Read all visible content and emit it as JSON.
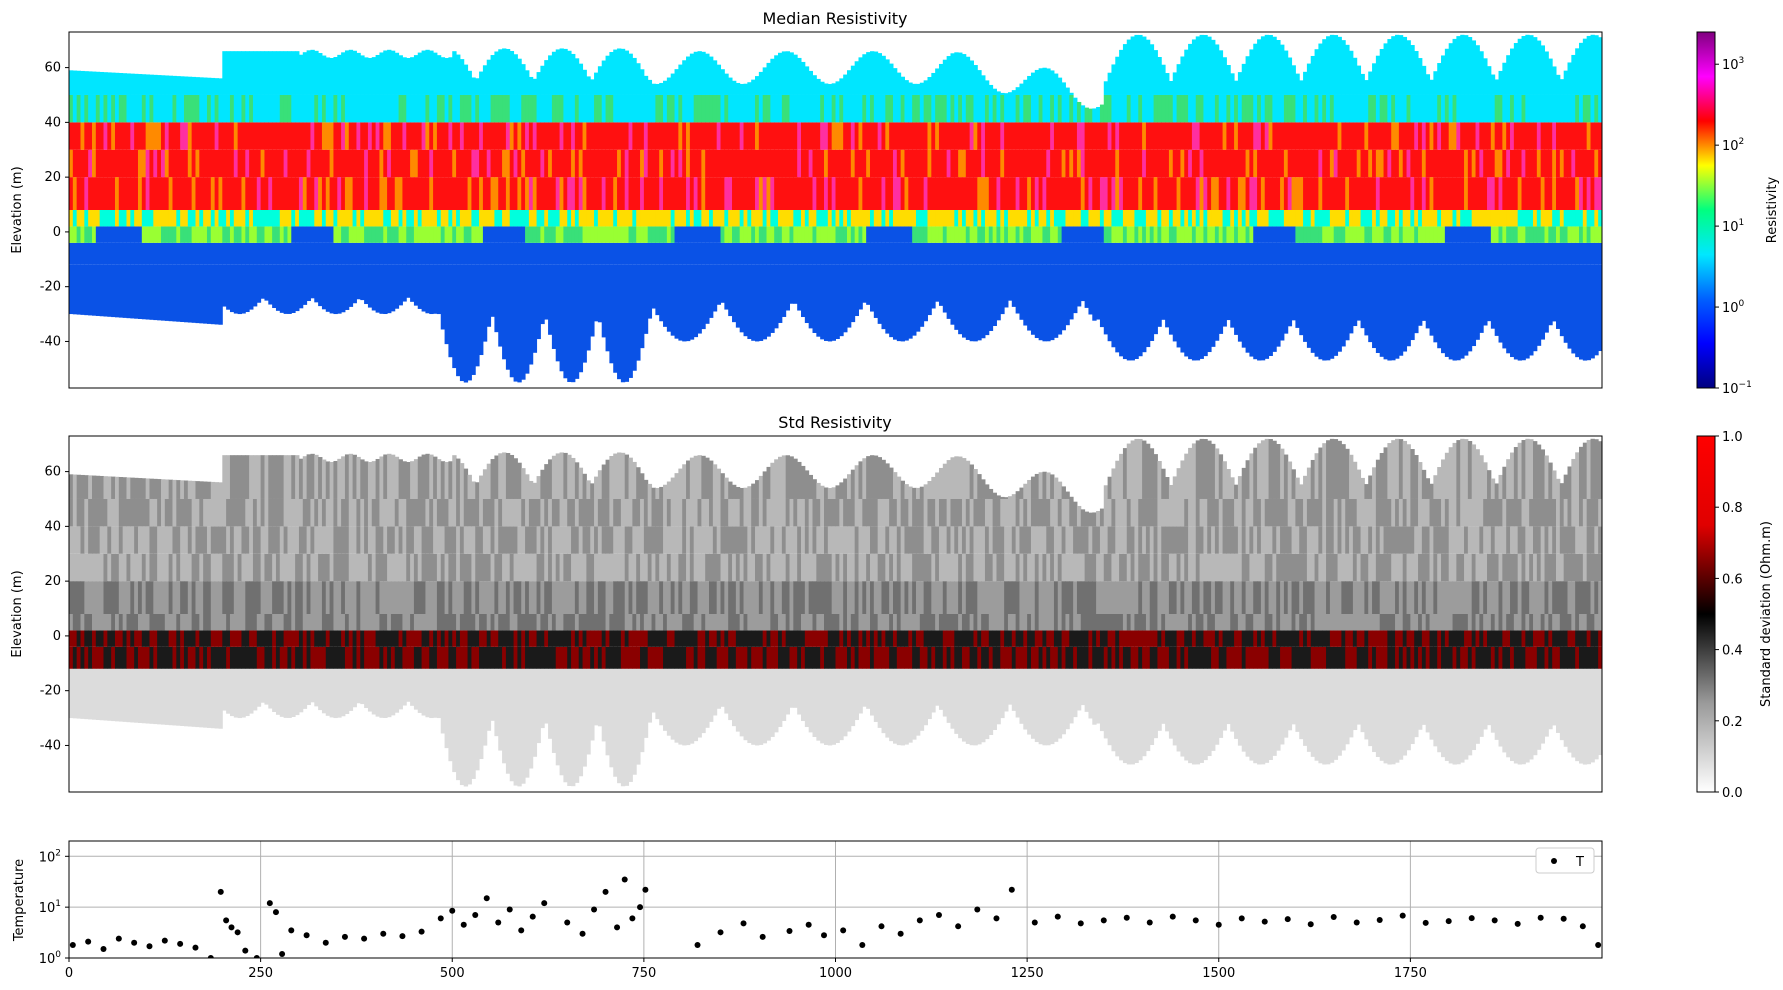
{
  "colors": {
    "resistivity_cmap": [
      "#000080",
      "#0000ff",
      "#0060ff",
      "#00e8ff",
      "#00ff80",
      "#ffff00",
      "#ff0000",
      "#ff00ff",
      "#800080"
    ],
    "std_cmap": [
      "#ffffff",
      "#9a9a9a",
      "#000000",
      "#e00000",
      "#ff0000"
    ],
    "temperature_marker": "#000000"
  },
  "chart_data": [
    {
      "type": "heatmap",
      "title": "Median Resistivity",
      "ylabel": "Elevation (m)",
      "xlim": [
        0,
        2000
      ],
      "ylim": [
        -57,
        73
      ],
      "yticks": [
        "60",
        "40",
        "20",
        "0",
        "-20",
        "-40"
      ],
      "x_axis_visible": false,
      "colorbar": {
        "label": "Resistivity",
        "scale": "log",
        "range": [
          0.1,
          2500
        ],
        "ticks": [
          {
            "base": "10",
            "exp": "3",
            "value": 1000
          },
          {
            "base": "10",
            "exp": "2",
            "value": 100
          },
          {
            "base": "10",
            "exp": "1",
            "value": 10
          },
          {
            "base": "10",
            "exp": "0",
            "value": 1
          },
          {
            "base": "10",
            "exp": "−1",
            "value": 0.1
          }
        ]
      }
    },
    {
      "type": "heatmap",
      "title": "Std Resistivity",
      "ylabel": "Elevation (m)",
      "xlim": [
        0,
        2000
      ],
      "ylim": [
        -57,
        73
      ],
      "yticks": [
        "60",
        "40",
        "20",
        "0",
        "-20",
        "-40"
      ],
      "x_axis_visible": false,
      "colorbar": {
        "label": "Standard deviation (Ohm.m)",
        "scale": "linear",
        "range": [
          0,
          1
        ],
        "ticks": [
          "1.0",
          "0.8",
          "0.6",
          "0.4",
          "0.2",
          "0.0"
        ]
      }
    },
    {
      "type": "scatter",
      "ylabel": "Temperature",
      "yscale": "log",
      "ylim": [
        1,
        200
      ],
      "xlim": [
        0,
        2000
      ],
      "grid": true,
      "xticks": [
        "0",
        "250",
        "500",
        "750",
        "1000",
        "1250",
        "1500",
        "1750"
      ],
      "yticks": [
        {
          "base": "10",
          "exp": "2",
          "value": 100
        },
        {
          "base": "10",
          "exp": "1",
          "value": 10
        },
        {
          "base": "10",
          "exp": "0",
          "value": 1
        }
      ],
      "legend": {
        "position": "top-right",
        "entries": [
          "T"
        ]
      },
      "series": [
        {
          "name": "T",
          "x": [
            5,
            25,
            45,
            65,
            85,
            105,
            125,
            145,
            165,
            185,
            198,
            205,
            212,
            220,
            230,
            245,
            262,
            270,
            278,
            290,
            310,
            335,
            360,
            385,
            410,
            435,
            460,
            485,
            500,
            515,
            530,
            545,
            560,
            575,
            590,
            605,
            620,
            650,
            670,
            685,
            700,
            715,
            725,
            735,
            745,
            752,
            820,
            850,
            880,
            905,
            940,
            965,
            985,
            1010,
            1035,
            1060,
            1085,
            1110,
            1135,
            1160,
            1185,
            1210,
            1230,
            1260,
            1290,
            1320,
            1350,
            1380,
            1410,
            1440,
            1470,
            1500,
            1530,
            1560,
            1590,
            1620,
            1650,
            1680,
            1710,
            1740,
            1770,
            1800,
            1830,
            1860,
            1890,
            1920,
            1950,
            1975,
            1995
          ],
          "y": [
            1.8,
            2.1,
            1.5,
            2.4,
            2.0,
            1.7,
            2.2,
            1.9,
            1.6,
            1.0,
            20,
            5.5,
            4.0,
            3.2,
            1.4,
            1.0,
            12,
            8,
            1.2,
            3.5,
            2.8,
            2.0,
            2.6,
            2.4,
            3.0,
            2.7,
            3.3,
            6,
            8.5,
            4.5,
            7,
            15,
            5,
            9,
            3.5,
            6.5,
            12,
            5,
            3,
            9,
            20,
            4,
            35,
            6,
            10,
            22,
            1.8,
            3.2,
            4.8,
            2.6,
            3.4,
            4.5,
            2.8,
            3.5,
            1.8,
            4.2,
            3.0,
            5.5,
            7,
            4.2,
            9,
            6,
            22,
            5,
            6.5,
            4.8,
            5.5,
            6.2,
            5.0,
            6.5,
            5.5,
            4.5,
            6.0,
            5.2,
            5.8,
            4.6,
            6.4,
            5.0,
            5.6,
            6.8,
            4.9,
            5.3,
            6.1,
            5.5,
            4.7,
            6.2,
            5.9,
            4.2,
            1.8
          ]
        }
      ]
    }
  ]
}
